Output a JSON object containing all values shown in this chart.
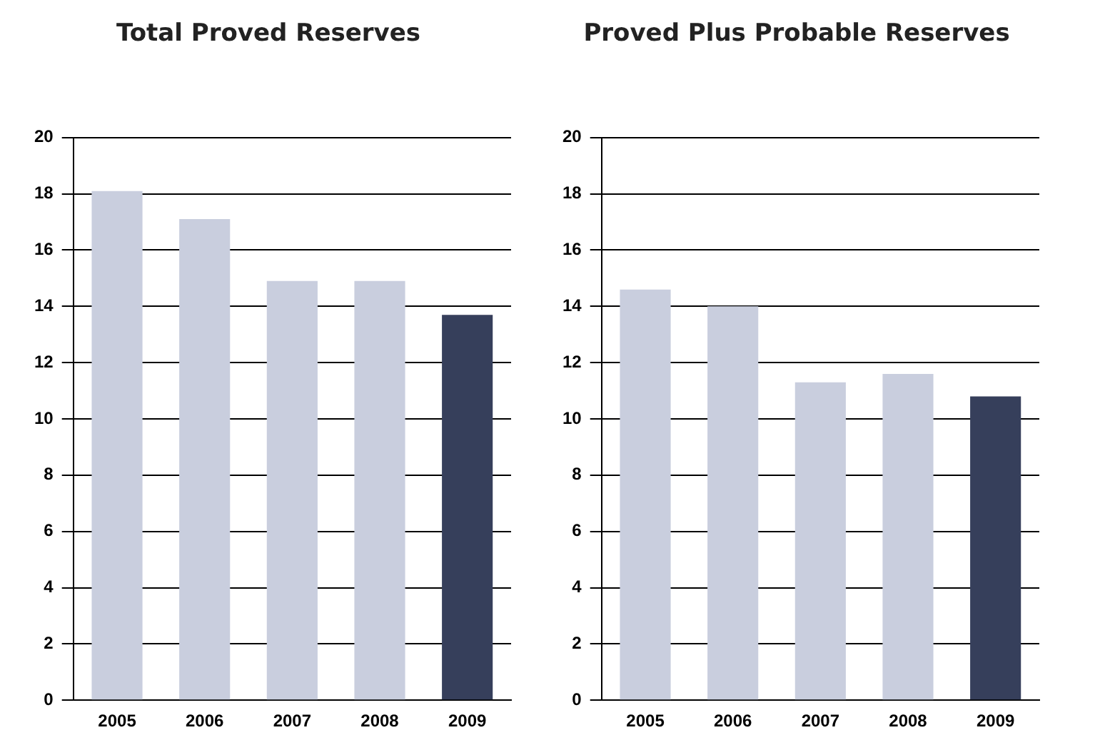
{
  "chart_data": [
    {
      "type": "bar",
      "title": "Total Proved Reserves",
      "categories": [
        "2005",
        "2006",
        "2007",
        "2008",
        "2009"
      ],
      "values": [
        18.1,
        17.1,
        14.9,
        14.9,
        13.7
      ],
      "colors": [
        "#c9cede",
        "#c9cede",
        "#c9cede",
        "#c9cede",
        "#363f5b"
      ],
      "ylim": [
        0,
        20
      ],
      "yticks": [
        0,
        2,
        4,
        6,
        8,
        10,
        12,
        14,
        16,
        18,
        20
      ],
      "grid": "y",
      "legend": false
    },
    {
      "type": "bar",
      "title": "Proved Plus Probable Reserves",
      "categories": [
        "2005",
        "2006",
        "2007",
        "2008",
        "2009"
      ],
      "values": [
        14.6,
        14.0,
        11.3,
        11.6,
        10.8
      ],
      "colors": [
        "#c9cede",
        "#c9cede",
        "#c9cede",
        "#c9cede",
        "#363f5b"
      ],
      "ylim": [
        0,
        20
      ],
      "yticks": [
        0,
        2,
        4,
        6,
        8,
        10,
        12,
        14,
        16,
        18,
        20
      ],
      "grid": "y",
      "legend": false
    }
  ]
}
